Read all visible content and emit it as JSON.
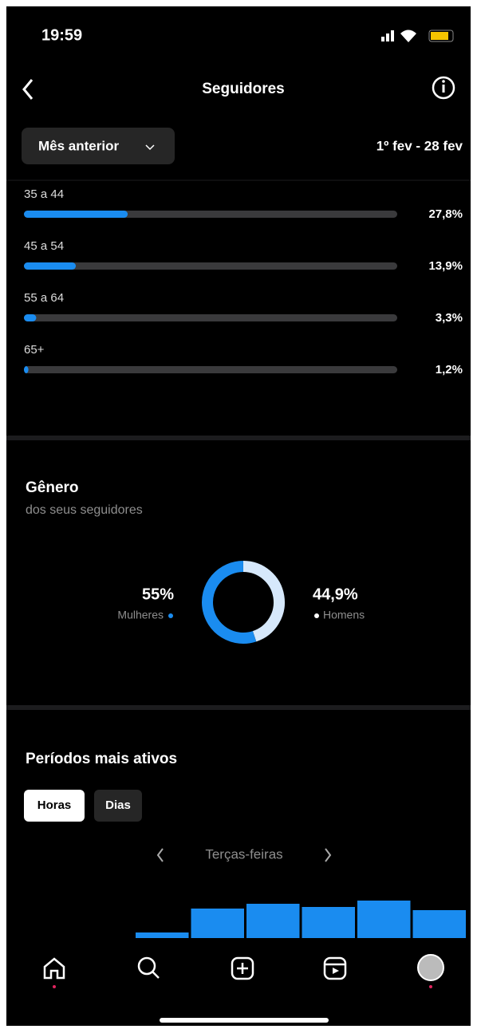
{
  "status_bar": {
    "time": "19:59"
  },
  "header": {
    "title": "Seguidores"
  },
  "filter": {
    "period": "Mês anterior",
    "range": "1º fev - 28 fev"
  },
  "chart_data": [
    {
      "type": "hbar",
      "categories": [
        "35 a 44",
        "45 a 54",
        "55 a 64",
        "65+"
      ],
      "values": [
        27.8,
        13.9,
        3.3,
        1.2
      ],
      "value_labels": [
        "27,8%",
        "13,9%",
        "3,3%",
        "1,2%"
      ],
      "color": "#1a8cf0",
      "track_color": "#3a3a3c",
      "xlim": [
        0,
        100
      ]
    },
    {
      "type": "donut",
      "title": "Gênero",
      "subtitle": "dos seus seguidores",
      "categories": [
        "Mulheres",
        "Homens"
      ],
      "values": [
        55,
        44.9
      ],
      "value_labels": [
        "55%",
        "44,9%"
      ],
      "colors": [
        "#1a8cf0",
        "#d6e8fb"
      ]
    },
    {
      "type": "bar",
      "title": "Períodos mais ativos",
      "tabs": [
        "Horas",
        "Dias"
      ],
      "nav_label": "Terças-feiras",
      "categories": [
        null,
        null,
        null,
        null,
        null,
        null
      ],
      "values": [
        7,
        37,
        43,
        39,
        47,
        35
      ],
      "color": "#1a8cf0",
      "ylim": [
        0,
        50
      ]
    }
  ]
}
